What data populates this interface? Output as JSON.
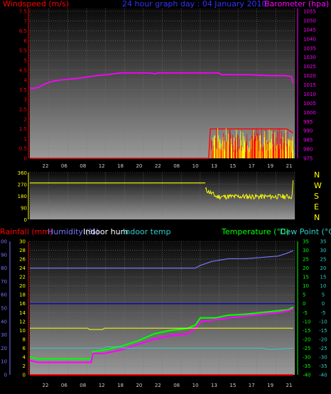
{
  "chart_data": [
    {
      "type": "line",
      "panel": "wind-pressure",
      "title": "24 hour graph day : 04 January 2010",
      "left_label": "Windspeed (m/s)",
      "right_label": "Barometer (hpa)",
      "colors": {
        "title": "#3333ff",
        "windspeed": "#ff0000",
        "barometer": "#ff00ff",
        "gust": "#ffff00"
      },
      "left_ticks": [
        "0",
        "0.5",
        "1",
        "1.5",
        "2",
        "2.5",
        "3",
        "3.5",
        "4",
        "4.5",
        "5",
        "5.5",
        "6",
        "6.5",
        "7",
        "7.5"
      ],
      "right_ticks": [
        "975",
        "980",
        "985",
        "990",
        "995",
        "1000",
        "1005",
        "1010",
        "1015",
        "1020",
        "1025",
        "1030",
        "1035",
        "1040",
        "1045",
        "1050",
        "1055"
      ],
      "left_range": [
        0,
        7.5
      ],
      "right_range": [
        975,
        1055
      ],
      "time_ticks": [
        "22",
        "06",
        "08",
        "12",
        "18",
        "20",
        "22",
        "08",
        "10",
        "13",
        "15",
        "17",
        "19",
        "21"
      ],
      "series": [
        {
          "name": "Barometer",
          "axis": "right",
          "values": [
            [
              0,
              1013.5
            ],
            [
              0.1,
              1013
            ],
            [
              0.5,
              1013.5
            ],
            [
              0.8,
              1015
            ],
            [
              1.2,
              1016.5
            ],
            [
              1.7,
              1017.5
            ],
            [
              2.3,
              1018
            ],
            [
              3.3,
              1019
            ],
            [
              4.0,
              1020
            ],
            [
              4.6,
              1020.5
            ],
            [
              5.5,
              1021.5
            ],
            [
              6.5,
              1021.5
            ],
            [
              7.2,
              1021.5
            ],
            [
              7.6,
              1021
            ],
            [
              7.7,
              1021.5
            ],
            [
              8.6,
              1021.5
            ],
            [
              9.3,
              1021.5
            ],
            [
              10.0,
              1021.5
            ],
            [
              11.4,
              1021.5
            ],
            [
              11.6,
              1020.5
            ],
            [
              12.4,
              1020.5
            ],
            [
              13.3,
              1020.5
            ],
            [
              14.5,
              1020
            ],
            [
              15.4,
              1020
            ],
            [
              15.8,
              1019.5
            ],
            [
              15.9,
              1016
            ]
          ]
        },
        {
          "name": "Windspeed",
          "axis": "left",
          "values": [
            [
              0,
              0
            ],
            [
              10.8,
              0
            ],
            [
              10.9,
              1.5
            ],
            [
              11.5,
              1.5
            ],
            [
              12.0,
              1.5
            ],
            [
              13.0,
              1.5
            ],
            [
              14.0,
              1.5
            ],
            [
              15.0,
              1.5
            ],
            [
              15.5,
              1.5
            ],
            [
              15.9,
              1.3
            ]
          ]
        }
      ]
    },
    {
      "type": "line",
      "panel": "wind-direction",
      "left_ticks": [
        "0",
        "90",
        "180",
        "270",
        "360"
      ],
      "left_range": [
        0,
        360
      ],
      "right_labels": [
        "N",
        "W",
        "S",
        "E",
        "N"
      ],
      "colors": {
        "direction": "#ffff00",
        "compass": "#ffff00"
      },
      "series": [
        {
          "name": "Wind direction",
          "values": [
            [
              0,
              280
            ],
            [
              10.6,
              280
            ],
            [
              10.8,
              250
            ],
            [
              11.0,
              190
            ],
            [
              11.5,
              180
            ],
            [
              12.0,
              170
            ],
            [
              12.5,
              175
            ],
            [
              13.0,
              170
            ],
            [
              13.5,
              175
            ],
            [
              14.0,
              168
            ],
            [
              14.5,
              175
            ],
            [
              15.0,
              170
            ],
            [
              15.5,
              165
            ],
            [
              15.8,
              180
            ],
            [
              15.9,
              300
            ]
          ]
        }
      ]
    },
    {
      "type": "line",
      "panel": "temperature-humidity",
      "labels": {
        "rainfall": "Rainfall (mm)",
        "humidity": "Humidity (%)",
        "indoor_hum": "Indoor hum",
        "indoor_temp": "Indoor temp",
        "temperature": "Temperature (°C)",
        "dew_point": "Dew Point (°C)"
      },
      "colors": {
        "rainfall": "#ff0000",
        "humidity": "#7777ff",
        "indoor_hum": "#ffffff",
        "indoor_temp": "#33cccc",
        "temperature": "#00ff00",
        "dew_point": "#ff00ff",
        "mid_line": "#0000cc"
      },
      "humidity_ticks": [
        "0",
        "10",
        "20",
        "30",
        "40",
        "50",
        "60",
        "70",
        "80",
        "90",
        "100"
      ],
      "rain_ticks": [
        "0",
        "2",
        "4",
        "6",
        "8",
        "10",
        "12",
        "14",
        "16",
        "18",
        "20",
        "22",
        "24",
        "26",
        "28",
        "30"
      ],
      "temp_ticks": [
        "-40",
        "-35",
        "-30",
        "-25",
        "-20",
        "-15",
        "-10",
        "-5",
        "0",
        "5",
        "10",
        "15",
        "20",
        "25",
        "30",
        "35"
      ],
      "temp_range": [
        -40,
        35
      ],
      "series": [
        {
          "name": "Temperature",
          "values": [
            [
              0,
              -30
            ],
            [
              0.5,
              -31
            ],
            [
              1.5,
              -31
            ],
            [
              2.5,
              -31
            ],
            [
              3.7,
              -31
            ],
            [
              3.8,
              -27
            ],
            [
              4.5,
              -26
            ],
            [
              5.5,
              -24
            ],
            [
              6.5,
              -21
            ],
            [
              7.5,
              -17
            ],
            [
              8.5,
              -15
            ],
            [
              9.5,
              -14
            ],
            [
              10.0,
              -12
            ],
            [
              10.3,
              -8
            ],
            [
              11.2,
              -8
            ],
            [
              12.0,
              -6.5
            ],
            [
              13.0,
              -6
            ],
            [
              14.0,
              -5
            ],
            [
              15.0,
              -4
            ],
            [
              15.6,
              -3.5
            ],
            [
              15.9,
              -2
            ]
          ]
        },
        {
          "name": "Dew Point",
          "values": [
            [
              0,
              -32
            ],
            [
              0.5,
              -33
            ],
            [
              1.5,
              -33
            ],
            [
              2.5,
              -33
            ],
            [
              3.7,
              -33
            ],
            [
              3.8,
              -28
            ],
            [
              4.5,
              -28
            ],
            [
              5.5,
              -26
            ],
            [
              6.5,
              -23
            ],
            [
              7.5,
              -20
            ],
            [
              8.5,
              -18
            ],
            [
              9.5,
              -17
            ],
            [
              10.0,
              -14
            ],
            [
              10.3,
              -10
            ],
            [
              11.2,
              -9
            ],
            [
              12.0,
              -8
            ],
            [
              13.0,
              -7
            ],
            [
              14.0,
              -6
            ],
            [
              15.0,
              -5
            ],
            [
              15.6,
              -4
            ],
            [
              15.9,
              -3
            ]
          ]
        },
        {
          "name": "Humidity",
          "values": [
            [
              0,
              80
            ],
            [
              2,
              80
            ],
            [
              4,
              80
            ],
            [
              6,
              80
            ],
            [
              8,
              80
            ],
            [
              10,
              80
            ],
            [
              10.3,
              82
            ],
            [
              11.0,
              85
            ],
            [
              12.0,
              87
            ],
            [
              13.0,
              87
            ],
            [
              14.0,
              88
            ],
            [
              15.0,
              89
            ],
            [
              15.5,
              91
            ],
            [
              15.9,
              93
            ]
          ]
        },
        {
          "name": "Indoor temp",
          "values": [
            [
              0,
              20
            ],
            [
              4.5,
              20
            ],
            [
              4.6,
              21
            ],
            [
              5.5,
              21
            ],
            [
              5.6,
              20
            ],
            [
              10.0,
              20
            ],
            [
              10.2,
              20
            ],
            [
              11.0,
              20
            ],
            [
              12.0,
              20
            ],
            [
              13.0,
              20
            ],
            [
              14.0,
              20
            ],
            [
              14.5,
              19
            ],
            [
              15.9,
              20
            ]
          ]
        },
        {
          "name": "Indoor hum",
          "values": [
            [
              0,
              35
            ],
            [
              3.5,
              35
            ],
            [
              3.6,
              34
            ],
            [
              4.4,
              34
            ],
            [
              4.5,
              35
            ],
            [
              10.5,
              35
            ],
            [
              11.0,
              35
            ],
            [
              12.0,
              35
            ],
            [
              13.0,
              35
            ],
            [
              14.0,
              35
            ],
            [
              15.0,
              35
            ],
            [
              15.9,
              35
            ]
          ]
        },
        {
          "name": "Rainfall",
          "values": [
            [
              0,
              0
            ],
            [
              15.9,
              0
            ]
          ]
        }
      ]
    }
  ]
}
